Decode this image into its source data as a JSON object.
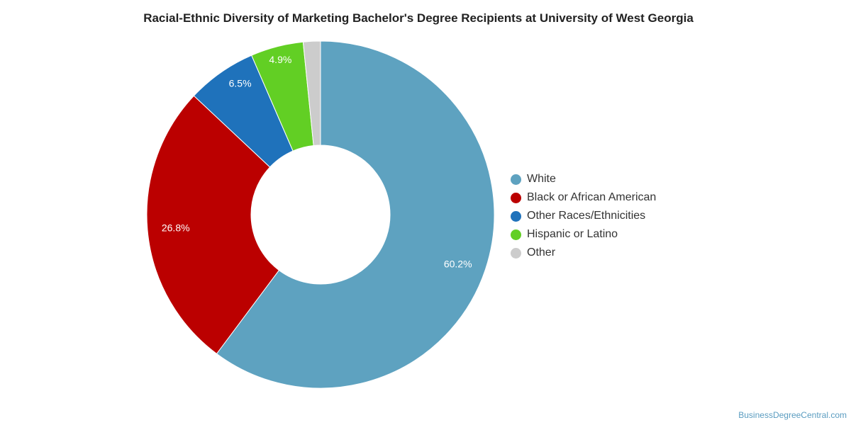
{
  "chart_data": {
    "type": "pie",
    "variant": "donut",
    "title": "Racial-Ethnic Diversity of Marketing Bachelor's Degree Recipients at University of West Georgia",
    "slices": [
      {
        "label": "White",
        "value": 60.2,
        "display": "60.2%",
        "color": "#5ea2c0"
      },
      {
        "label": "Black or African American",
        "value": 26.8,
        "display": "26.8%",
        "color": "#bb0000"
      },
      {
        "label": "Other Races/Ethnicities",
        "value": 6.5,
        "display": "6.5%",
        "color": "#1f72bb"
      },
      {
        "label": "Hispanic or Latino",
        "value": 4.9,
        "display": "4.9%",
        "color": "#62cf24"
      },
      {
        "label": "Other",
        "value": 1.6,
        "display": "",
        "color": "#cccccc"
      }
    ],
    "legend_position": "right"
  },
  "watermark": "BusinessDegreeCentral.com"
}
